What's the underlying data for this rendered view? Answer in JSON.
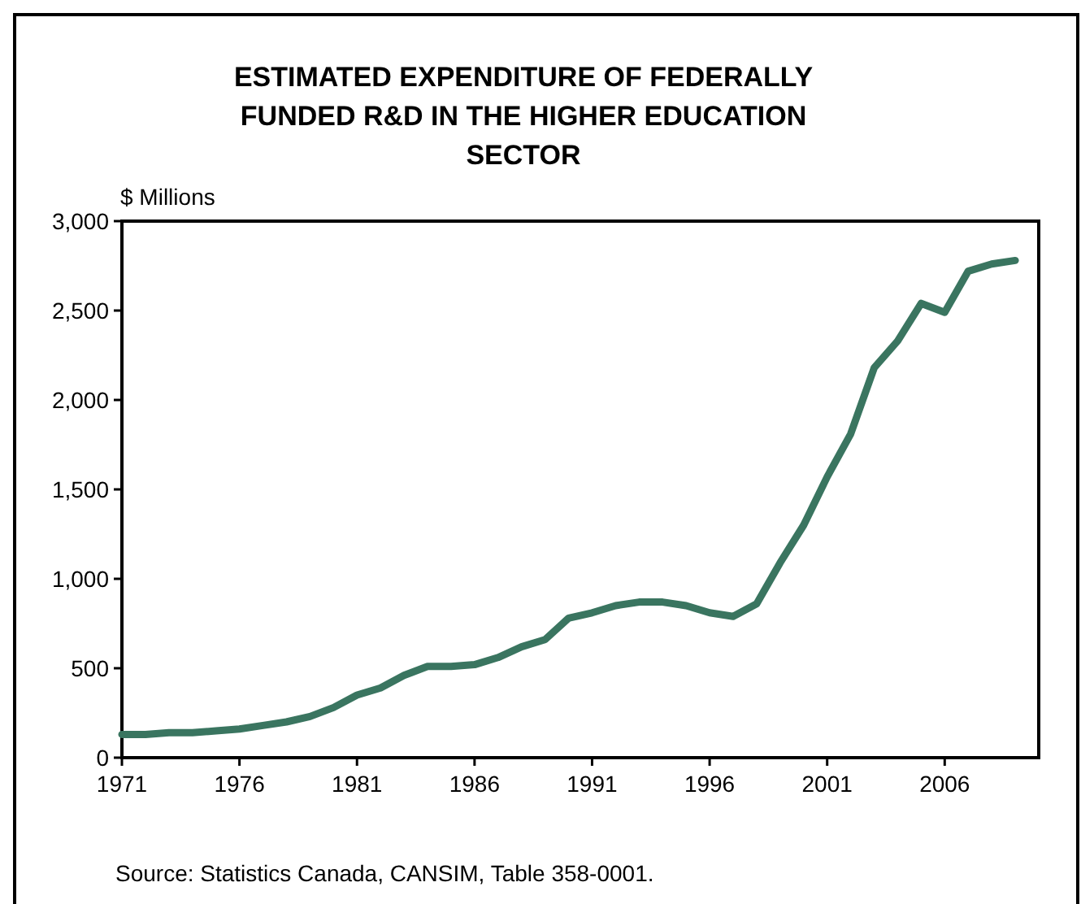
{
  "chart_data": {
    "type": "line",
    "title": "ESTIMATED EXPENDITURE OF FEDERALLY FUNDED R&D IN THE HIGHER EDUCATION SECTOR",
    "ylabel": "$ Millions",
    "annotations": [
      "Source: Statistics Canada, CANSIM, Table 358-0001."
    ],
    "x": [
      1971,
      1972,
      1973,
      1974,
      1975,
      1976,
      1977,
      1978,
      1979,
      1980,
      1981,
      1982,
      1983,
      1984,
      1985,
      1986,
      1987,
      1988,
      1989,
      1990,
      1991,
      1992,
      1993,
      1994,
      1995,
      1996,
      1997,
      1998,
      1999,
      2000,
      2001,
      2002,
      2003,
      2004,
      2005,
      2006,
      2007,
      2008,
      2009
    ],
    "series": [
      {
        "color": "#3a7560",
        "values": [
          130,
          130,
          140,
          140,
          150,
          160,
          180,
          200,
          230,
          280,
          350,
          390,
          460,
          510,
          510,
          520,
          560,
          620,
          660,
          780,
          810,
          850,
          870,
          870,
          850,
          810,
          790,
          860,
          1090,
          1300,
          1570,
          1810,
          2180,
          2330,
          2540,
          2490,
          2720,
          2760,
          2780
        ]
      }
    ],
    "xlim": [
      1971,
      2010
    ],
    "xticks": [
      1971,
      1976,
      1981,
      1986,
      1991,
      1996,
      2001,
      2006
    ],
    "ylim": [
      0,
      3000
    ],
    "yticks": [
      0,
      {
        "value": 500,
        "label": "500"
      },
      {
        "value": 1000,
        "label": "1,000"
      },
      {
        "value": 1500,
        "label": "1,500"
      },
      {
        "value": 2000,
        "label": "2,000"
      },
      {
        "value": 2500,
        "label": "2,500"
      },
      {
        "value": 3000,
        "label": "3,000"
      }
    ],
    "grid": false,
    "marker": "none",
    "line_style": "solid"
  }
}
